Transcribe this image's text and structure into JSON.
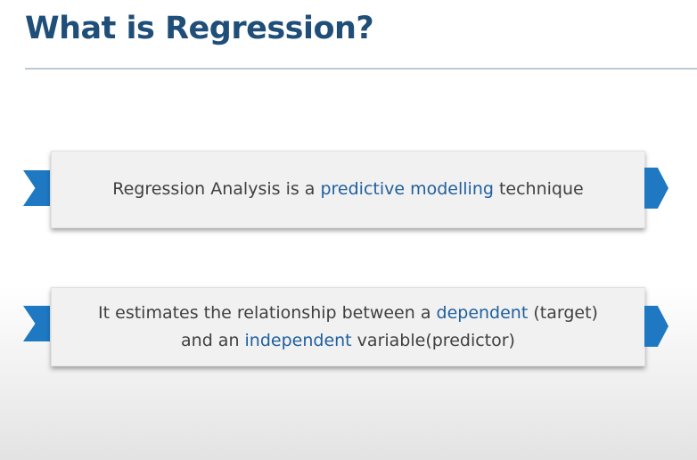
{
  "slide": {
    "title": "What is Regression?",
    "points": [
      {
        "before": "Regression Analysis is a ",
        "highlight": "predictive modelling",
        "after": " technique"
      },
      {
        "line1_before": "It estimates the relationship between a ",
        "line1_highlight": "dependent",
        "line1_after": " (target)",
        "line2_before": "and an ",
        "line2_highlight": "independent",
        "line2_after": " variable(predictor)"
      }
    ]
  },
  "colors": {
    "title": "#1f4e79",
    "accent": "#1e78c2",
    "highlight": "#1f5f9e",
    "body_text": "#404040"
  }
}
